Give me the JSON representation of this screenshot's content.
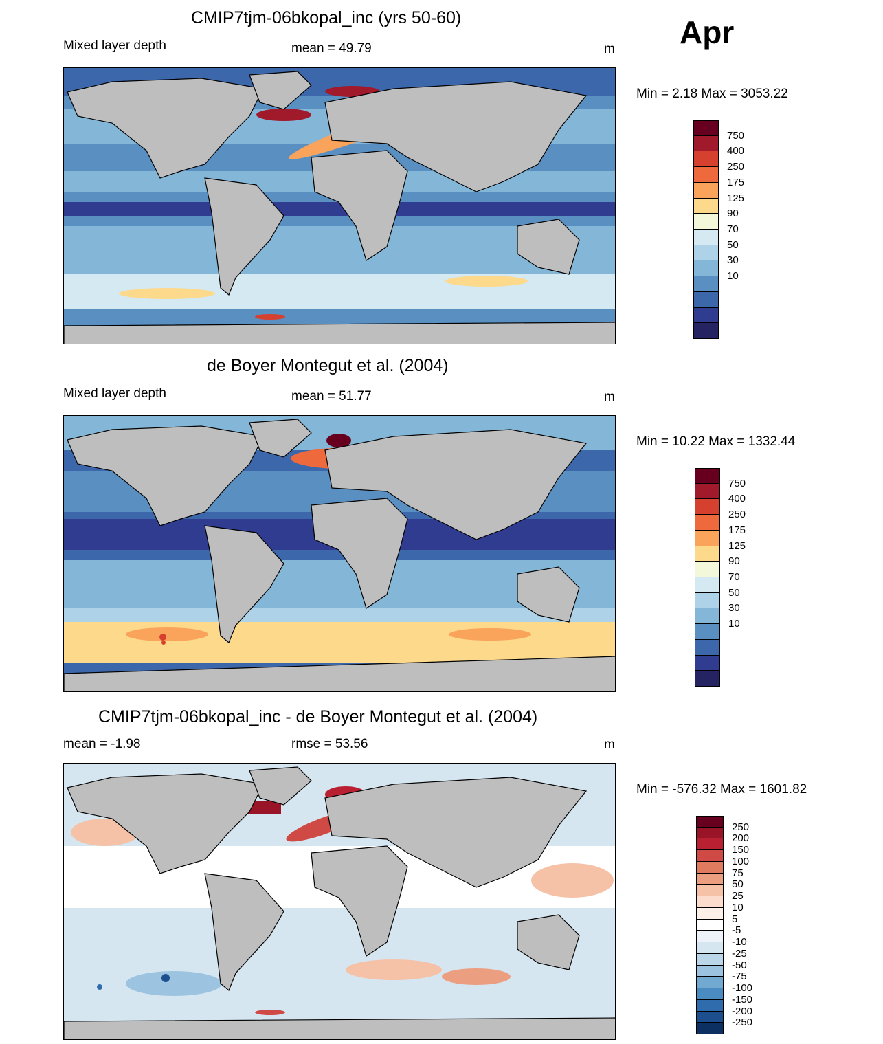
{
  "month": "Apr",
  "panels": [
    {
      "title": "CMIP7tjm-06bkopal_inc (yrs 50-60)",
      "left": "Mixed layer depth",
      "center": "mean =  49.79",
      "units": "m",
      "minmax": "Min =   2.18 Max = 3053.22",
      "colorbar": {
        "labels": [
          "750",
          "400",
          "250",
          "175",
          "125",
          "90",
          "70",
          "50",
          "30",
          "10"
        ],
        "colors": [
          "#67001f",
          "#a11a2c",
          "#d6402f",
          "#ee6a3c",
          "#f9a35b",
          "#fdd98b",
          "#f3f8da",
          "#d4e9f2",
          "#aed3e8",
          "#84b6d8",
          "#5a8fc2",
          "#3c67ab",
          "#2f3c8f",
          "#262362"
        ]
      }
    },
    {
      "title": "de Boyer Montegut et al. (2004)",
      "left": "Mixed layer depth",
      "center": "mean =  51.77",
      "units": "m",
      "minmax": "Min =  10.22 Max = 1332.44",
      "colorbar": {
        "labels": [
          "750",
          "400",
          "250",
          "175",
          "125",
          "90",
          "70",
          "50",
          "30",
          "10"
        ],
        "colors": [
          "#67001f",
          "#a11a2c",
          "#d6402f",
          "#ee6a3c",
          "#f9a35b",
          "#fdd98b",
          "#f3f8da",
          "#d4e9f2",
          "#aed3e8",
          "#84b6d8",
          "#5a8fc2",
          "#3c67ab",
          "#2f3c8f",
          "#262362"
        ]
      }
    },
    {
      "title": "CMIP7tjm-06bkopal_inc - de Boyer Montegut et al. (2004)",
      "left": "mean =  -1.98",
      "center": "rmse =  53.56",
      "units": "m",
      "minmax": "Min = -576.32 Max = 1601.82",
      "colorbar": {
        "labels": [
          "250",
          "200",
          "150",
          "100",
          "75",
          "50",
          "25",
          "10",
          "5",
          "-5",
          "-10",
          "-25",
          "-50",
          "-75",
          "-100",
          "-150",
          "-200",
          "-250"
        ],
        "colors": [
          "#67001f",
          "#9a1428",
          "#b92032",
          "#cf4a44",
          "#e07b60",
          "#ec9e80",
          "#f5c2a8",
          "#fbdccd",
          "#fdf0e9",
          "#ffffff",
          "#edf3f8",
          "#d6e6f1",
          "#bcd6e9",
          "#9cc4e0",
          "#72a9d1",
          "#4a8bc2",
          "#2e6cae",
          "#1d4f8f",
          "#0b3061"
        ]
      }
    }
  ],
  "chart_data": {
    "type": "heatmap",
    "description_free": true,
    "maps": [
      {
        "title": "CMIP7tjm-06bkopal_inc (yrs 50-60)",
        "mean": 49.79,
        "min": 2.18,
        "max": 3053.22,
        "units": "m"
      },
      {
        "title": "de Boyer Montegut et al. (2004)",
        "mean": 51.77,
        "min": 10.22,
        "max": 1332.44,
        "units": "m"
      },
      {
        "title": "CMIP7tjm-06bkopal_inc - de Boyer Montegut et al. (2004)",
        "mean": -1.98,
        "rmse": 53.56,
        "min": -576.32,
        "max": 1601.82,
        "units": "m"
      }
    ]
  }
}
